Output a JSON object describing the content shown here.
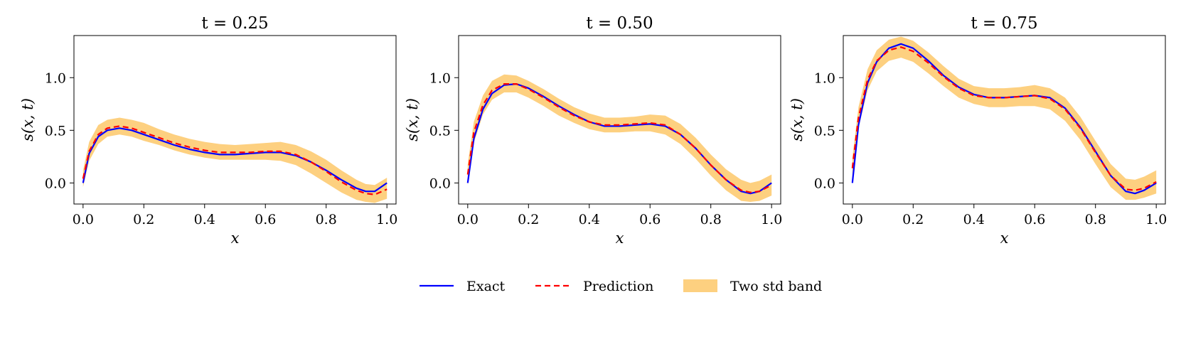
{
  "chart_data": [
    {
      "type": "line",
      "title": "t = 0.25",
      "xlabel": "x",
      "ylabel": "s(x, t)",
      "xlim": [
        -0.03,
        1.03
      ],
      "ylim": [
        -0.2,
        1.4
      ],
      "xticks": [
        "0.0",
        "0.2",
        "0.4",
        "0.6",
        "0.8",
        "1.0"
      ],
      "yticks": [
        "0.0",
        "0.5",
        "1.0"
      ],
      "x": [
        0,
        0.02,
        0.05,
        0.08,
        0.12,
        0.16,
        0.2,
        0.25,
        0.3,
        0.35,
        0.4,
        0.45,
        0.5,
        0.55,
        0.6,
        0.65,
        0.7,
        0.75,
        0.8,
        0.85,
        0.9,
        0.93,
        0.96,
        1.0
      ],
      "series": [
        {
          "name": "Exact",
          "values": [
            0.0,
            0.28,
            0.44,
            0.5,
            0.52,
            0.5,
            0.46,
            0.41,
            0.36,
            0.32,
            0.29,
            0.27,
            0.27,
            0.28,
            0.29,
            0.29,
            0.26,
            0.2,
            0.12,
            0.03,
            -0.05,
            -0.08,
            -0.08,
            0.0
          ]
        },
        {
          "name": "Prediction",
          "values": [
            0.04,
            0.3,
            0.46,
            0.52,
            0.54,
            0.52,
            0.48,
            0.43,
            0.38,
            0.34,
            0.31,
            0.29,
            0.29,
            0.29,
            0.3,
            0.3,
            0.27,
            0.2,
            0.11,
            0.01,
            -0.07,
            -0.1,
            -0.11,
            -0.06
          ]
        },
        {
          "name": "Two std band",
          "lower": [
            -0.04,
            0.21,
            0.37,
            0.44,
            0.46,
            0.44,
            0.4,
            0.36,
            0.31,
            0.27,
            0.24,
            0.22,
            0.22,
            0.22,
            0.22,
            0.21,
            0.17,
            0.09,
            0.0,
            -0.09,
            -0.16,
            -0.18,
            -0.19,
            -0.15
          ],
          "upper": [
            0.12,
            0.39,
            0.55,
            0.6,
            0.62,
            0.6,
            0.57,
            0.51,
            0.46,
            0.42,
            0.39,
            0.37,
            0.36,
            0.37,
            0.38,
            0.39,
            0.36,
            0.3,
            0.22,
            0.12,
            0.03,
            -0.01,
            -0.02,
            0.05
          ]
        }
      ]
    },
    {
      "type": "line",
      "title": "t = 0.50",
      "xlabel": "x",
      "ylabel": "s(x, t)",
      "xlim": [
        -0.03,
        1.03
      ],
      "ylim": [
        -0.2,
        1.4
      ],
      "xticks": [
        "0.0",
        "0.2",
        "0.4",
        "0.6",
        "0.8",
        "1.0"
      ],
      "yticks": [
        "0.0",
        "0.5",
        "1.0"
      ],
      "x": [
        0,
        0.02,
        0.05,
        0.08,
        0.12,
        0.16,
        0.2,
        0.25,
        0.3,
        0.35,
        0.4,
        0.45,
        0.5,
        0.55,
        0.6,
        0.65,
        0.7,
        0.75,
        0.8,
        0.85,
        0.9,
        0.93,
        0.96,
        1.0
      ],
      "series": [
        {
          "name": "Exact",
          "values": [
            0.0,
            0.42,
            0.7,
            0.85,
            0.93,
            0.94,
            0.9,
            0.82,
            0.73,
            0.65,
            0.58,
            0.54,
            0.54,
            0.55,
            0.56,
            0.54,
            0.46,
            0.33,
            0.17,
            0.03,
            -0.08,
            -0.1,
            -0.08,
            0.0
          ]
        },
        {
          "name": "Prediction",
          "values": [
            0.08,
            0.48,
            0.74,
            0.88,
            0.94,
            0.94,
            0.89,
            0.81,
            0.72,
            0.64,
            0.58,
            0.55,
            0.55,
            0.56,
            0.57,
            0.55,
            0.46,
            0.33,
            0.17,
            0.03,
            -0.07,
            -0.09,
            -0.08,
            -0.02
          ]
        },
        {
          "name": "Two std band",
          "lower": [
            -0.02,
            0.38,
            0.65,
            0.79,
            0.86,
            0.86,
            0.81,
            0.73,
            0.64,
            0.57,
            0.51,
            0.48,
            0.48,
            0.49,
            0.49,
            0.46,
            0.37,
            0.23,
            0.07,
            -0.07,
            -0.17,
            -0.18,
            -0.17,
            -0.12
          ]
        },
        {
          "name": "Two std band upper",
          "upper": [
            0.18,
            0.58,
            0.83,
            0.97,
            1.03,
            1.02,
            0.97,
            0.89,
            0.8,
            0.72,
            0.66,
            0.62,
            0.62,
            0.63,
            0.65,
            0.64,
            0.56,
            0.43,
            0.27,
            0.13,
            0.03,
            0.0,
            0.02,
            0.08
          ]
        }
      ]
    },
    {
      "type": "line",
      "title": "t = 0.75",
      "xlabel": "x",
      "ylabel": "s(x, t)",
      "xlim": [
        -0.03,
        1.03
      ],
      "ylim": [
        -0.2,
        1.4
      ],
      "xticks": [
        "0.0",
        "0.2",
        "0.4",
        "0.6",
        "0.8",
        "1.0"
      ],
      "yticks": [
        "0.0",
        "0.5",
        "1.0"
      ],
      "x": [
        0,
        0.02,
        0.05,
        0.08,
        0.12,
        0.16,
        0.2,
        0.25,
        0.3,
        0.35,
        0.4,
        0.45,
        0.5,
        0.55,
        0.6,
        0.65,
        0.7,
        0.75,
        0.8,
        0.85,
        0.9,
        0.93,
        0.96,
        1.0
      ],
      "series": [
        {
          "name": "Exact",
          "values": [
            0.0,
            0.55,
            0.95,
            1.15,
            1.28,
            1.32,
            1.28,
            1.16,
            1.02,
            0.91,
            0.84,
            0.81,
            0.81,
            0.82,
            0.83,
            0.81,
            0.71,
            0.53,
            0.3,
            0.07,
            -0.08,
            -0.1,
            -0.07,
            0.0
          ]
        },
        {
          "name": "Prediction",
          "values": [
            0.14,
            0.62,
            0.98,
            1.16,
            1.26,
            1.29,
            1.25,
            1.14,
            1.01,
            0.9,
            0.83,
            0.81,
            0.81,
            0.82,
            0.83,
            0.8,
            0.7,
            0.52,
            0.29,
            0.07,
            -0.06,
            -0.07,
            -0.05,
            0.01
          ]
        },
        {
          "name": "Two std band",
          "lower": [
            0.04,
            0.52,
            0.88,
            1.06,
            1.16,
            1.19,
            1.15,
            1.04,
            0.92,
            0.81,
            0.75,
            0.72,
            0.72,
            0.73,
            0.73,
            0.7,
            0.59,
            0.41,
            0.18,
            -0.04,
            -0.16,
            -0.16,
            -0.14,
            -0.1
          ]
        },
        {
          "name": "Two std band upper",
          "upper": [
            0.24,
            0.72,
            1.08,
            1.26,
            1.36,
            1.39,
            1.35,
            1.24,
            1.11,
            0.99,
            0.92,
            0.9,
            0.9,
            0.91,
            0.93,
            0.9,
            0.81,
            0.63,
            0.4,
            0.18,
            0.04,
            0.03,
            0.06,
            0.12
          ]
        }
      ]
    }
  ],
  "legend": {
    "items": [
      {
        "label": "Exact",
        "color": "#0000ff",
        "style": "solid"
      },
      {
        "label": "Prediction",
        "color": "#ff0000",
        "style": "dashed"
      },
      {
        "label": "Two std band",
        "color": "#fdd080",
        "style": "patch"
      }
    ]
  }
}
